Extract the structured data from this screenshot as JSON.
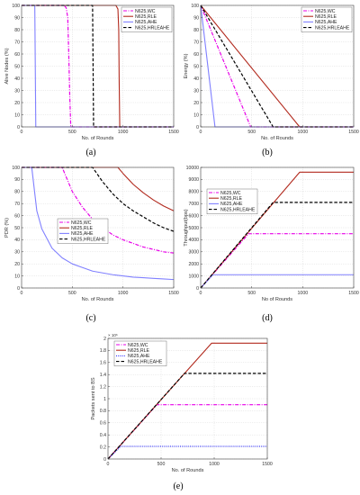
{
  "figure": {
    "panel_labels": [
      "(a)",
      "(b)",
      "(c)",
      "(d)",
      "(e)"
    ]
  },
  "chart_data": [
    {
      "type": "line",
      "panel": "(a)",
      "xlabel": "No. of Rounds",
      "ylabel": "Alive Nodes (%)",
      "xlim": [
        0,
        1500
      ],
      "ylim": [
        0,
        100
      ],
      "xticks": [
        0,
        500,
        1000,
        1500
      ],
      "yticks": [
        0,
        10,
        20,
        30,
        40,
        50,
        60,
        70,
        80,
        90,
        100
      ],
      "grid": true,
      "legend_position": "top-right",
      "series": [
        {
          "name": "N625,WC",
          "color": "#e800e8",
          "dash": "dashdot",
          "x": [
            0,
            420,
            440,
            455,
            465,
            475,
            485,
            1500
          ],
          "y": [
            100,
            100,
            98,
            90,
            60,
            25,
            0,
            0
          ]
        },
        {
          "name": "N625,RLE",
          "color": "#b22a1e",
          "dash": "solid",
          "x": [
            0,
            930,
            950,
            958,
            962,
            968,
            1500
          ],
          "y": [
            100,
            100,
            97,
            80,
            40,
            0,
            0
          ]
        },
        {
          "name": "N625,AHE",
          "color": "#8080ff",
          "dash": "solid",
          "x": [
            0,
            130,
            140,
            1500
          ],
          "y": [
            100,
            100,
            0,
            0
          ]
        },
        {
          "name": "N625,HRLEAHE",
          "color": "#000000",
          "dash": "dashed",
          "x": [
            0,
            700,
            710,
            1500
          ],
          "y": [
            100,
            100,
            0,
            0
          ]
        }
      ]
    },
    {
      "type": "line",
      "panel": "(b)",
      "xlabel": "No. of Rounds",
      "ylabel": "Energy (%)",
      "xlim": [
        0,
        1500
      ],
      "ylim": [
        0,
        100
      ],
      "xticks": [
        0,
        500,
        1000,
        1500
      ],
      "yticks": [
        0,
        10,
        20,
        30,
        40,
        50,
        60,
        70,
        80,
        90,
        100
      ],
      "grid": true,
      "legend_position": "top-right",
      "series": [
        {
          "name": "N625,WC",
          "color": "#e800e8",
          "dash": "dashdot",
          "x": [
            0,
            490,
            1500
          ],
          "y": [
            100,
            0,
            0
          ]
        },
        {
          "name": "N625,RLE",
          "color": "#b22a1e",
          "dash": "solid",
          "x": [
            0,
            970,
            1500
          ],
          "y": [
            100,
            0,
            0
          ]
        },
        {
          "name": "N625,AHE",
          "color": "#8080ff",
          "dash": "solid",
          "x": [
            0,
            140,
            1500
          ],
          "y": [
            100,
            0,
            0
          ]
        },
        {
          "name": "N625,HRLEAHE",
          "color": "#000000",
          "dash": "dashed",
          "x": [
            0,
            710,
            1500
          ],
          "y": [
            100,
            0,
            0
          ]
        }
      ]
    },
    {
      "type": "line",
      "panel": "(c)",
      "xlabel": "No. of Rounds",
      "ylabel": "PDR (%)",
      "xlim": [
        0,
        1500
      ],
      "ylim": [
        0,
        100
      ],
      "xticks": [
        0,
        500,
        1000,
        1500
      ],
      "yticks": [
        0,
        10,
        20,
        30,
        40,
        50,
        60,
        70,
        80,
        90,
        100
      ],
      "grid": true,
      "legend_position": "center-left",
      "series": [
        {
          "name": "N625,WC",
          "color": "#e800e8",
          "dash": "dashdot",
          "x": [
            0,
            400,
            500,
            600,
            700,
            800,
            900,
            1000,
            1100,
            1200,
            1300,
            1400,
            1500
          ],
          "y": [
            100,
            100,
            80,
            67,
            57,
            50,
            44,
            40,
            37,
            34,
            32,
            30,
            29
          ]
        },
        {
          "name": "N625,RLE",
          "color": "#b22a1e",
          "dash": "solid",
          "x": [
            0,
            950,
            1000,
            1100,
            1200,
            1300,
            1400,
            1500
          ],
          "y": [
            100,
            100,
            95,
            86,
            79,
            73,
            68,
            64
          ]
        },
        {
          "name": "N625,AHE",
          "color": "#8080ff",
          "dash": "solid",
          "x": [
            0,
            100,
            150,
            200,
            300,
            400,
            500,
            600,
            700,
            800,
            900,
            1000,
            1100,
            1200,
            1300,
            1400,
            1500
          ],
          "y": [
            100,
            100,
            64,
            49,
            33,
            25,
            20,
            17,
            14,
            12.5,
            11,
            10,
            9,
            8.5,
            8,
            7.5,
            7
          ]
        },
        {
          "name": "N625,HRLEAHE",
          "color": "#000000",
          "dash": "dashed",
          "x": [
            0,
            700,
            800,
            900,
            1000,
            1100,
            1200,
            1300,
            1400,
            1500
          ],
          "y": [
            100,
            100,
            88,
            78,
            70,
            64,
            59,
            54,
            50,
            47
          ]
        }
      ]
    },
    {
      "type": "line",
      "panel": "(d)",
      "xlabel": "No of Rounds",
      "ylabel": "Throughput(bps)",
      "xlim": [
        0,
        1500
      ],
      "ylim": [
        0,
        10000
      ],
      "xticks": [
        0,
        500,
        1000,
        1500
      ],
      "yticks": [
        0,
        1000,
        2000,
        3000,
        4000,
        5000,
        6000,
        7000,
        8000,
        9000,
        10000
      ],
      "grid": true,
      "legend_position": "top-left",
      "series": [
        {
          "name": "N625,WC",
          "color": "#e800e8",
          "dash": "dashdot",
          "x": [
            0,
            470,
            1500
          ],
          "y": [
            0,
            4500,
            4500
          ]
        },
        {
          "name": "N625,RLE",
          "color": "#b22a1e",
          "dash": "solid",
          "x": [
            0,
            970,
            1500
          ],
          "y": [
            0,
            9600,
            9600
          ]
        },
        {
          "name": "N625,AHE",
          "color": "#8080ff",
          "dash": "solid",
          "x": [
            0,
            120,
            1500
          ],
          "y": [
            0,
            1100,
            1100
          ]
        },
        {
          "name": "N625,HRLEAHE",
          "color": "#000000",
          "dash": "dashed",
          "x": [
            0,
            710,
            1500
          ],
          "y": [
            0,
            7100,
            7100
          ]
        }
      ]
    },
    {
      "type": "line",
      "panel": "(e)",
      "xlabel": "No. of Rounds",
      "ylabel": "Packets sent to BS",
      "exponent_label": "× 10⁶",
      "xlim": [
        0,
        1500
      ],
      "ylim": [
        0,
        2
      ],
      "xticks": [
        0,
        500,
        1000,
        1500
      ],
      "yticks": [
        0,
        0.2,
        0.4,
        0.6,
        0.8,
        1,
        1.2,
        1.4,
        1.6,
        1.8,
        2
      ],
      "grid": true,
      "legend_position": "top-left",
      "series": [
        {
          "name": "N625,WC",
          "color": "#e800e8",
          "dash": "dashdot",
          "x": [
            0,
            460,
            1500
          ],
          "y": [
            0,
            0.9,
            0.9
          ]
        },
        {
          "name": "N625,RLE",
          "color": "#b22a1e",
          "dash": "solid",
          "x": [
            0,
            975,
            1500
          ],
          "y": [
            0,
            1.92,
            1.92
          ]
        },
        {
          "name": "N625,AHE",
          "color": "#3030ff",
          "dash": "dotted",
          "x": [
            0,
            120,
            1500
          ],
          "y": [
            0,
            0.21,
            0.21
          ]
        },
        {
          "name": "N625,HRLEAHE",
          "color": "#000000",
          "dash": "dashed",
          "x": [
            0,
            720,
            1500
          ],
          "y": [
            0,
            1.42,
            1.42
          ]
        }
      ]
    }
  ]
}
